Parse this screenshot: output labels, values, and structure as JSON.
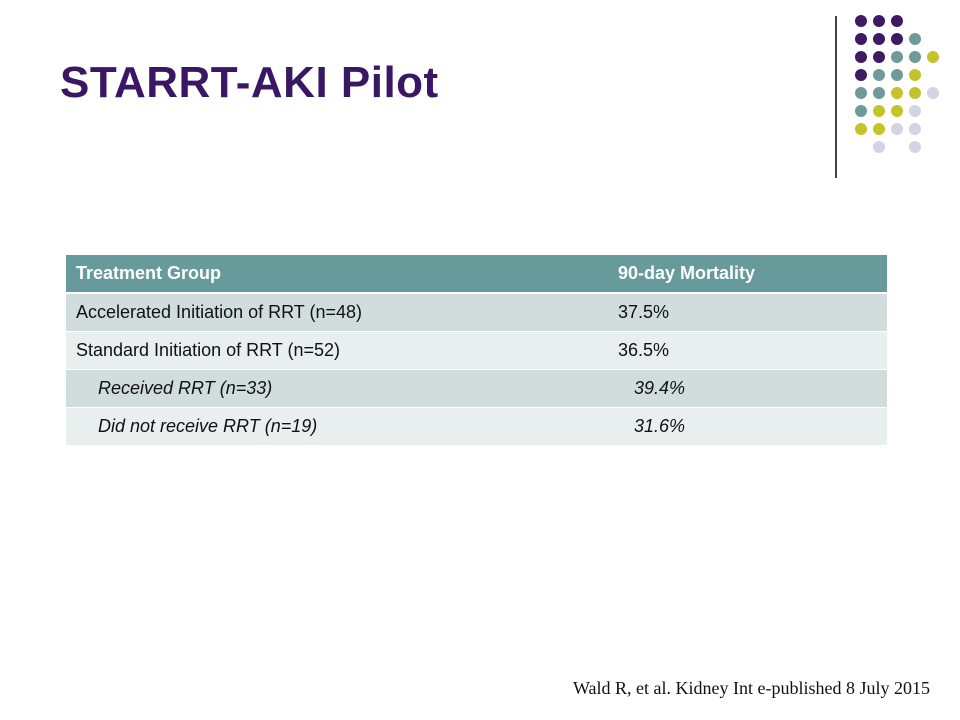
{
  "slide": {
    "title": "STARRT-AKI Pilot",
    "citation": "Wald R, et al. Kidney Int e-published 8 July 2015"
  },
  "decoration": {
    "dot_colors": {
      "purple": "#3d1a62",
      "teal": "#6f9a9a",
      "olive": "#c4c32a",
      "lavender": "#d4d3e6"
    }
  },
  "table": {
    "headers": [
      "Treatment Group",
      "90-day Mortality"
    ],
    "rows": [
      {
        "group": "Accelerated Initiation of  RRT (n=48)",
        "mortality": "37.5%"
      },
      {
        "group": "Standard Initiation of RRT (n=52)",
        "mortality": "36.5%"
      },
      {
        "group": "Received RRT (n=33)",
        "mortality": "39.4%"
      },
      {
        "group": "Did not receive RRT (n=19)",
        "mortality": "31.6%"
      }
    ]
  }
}
